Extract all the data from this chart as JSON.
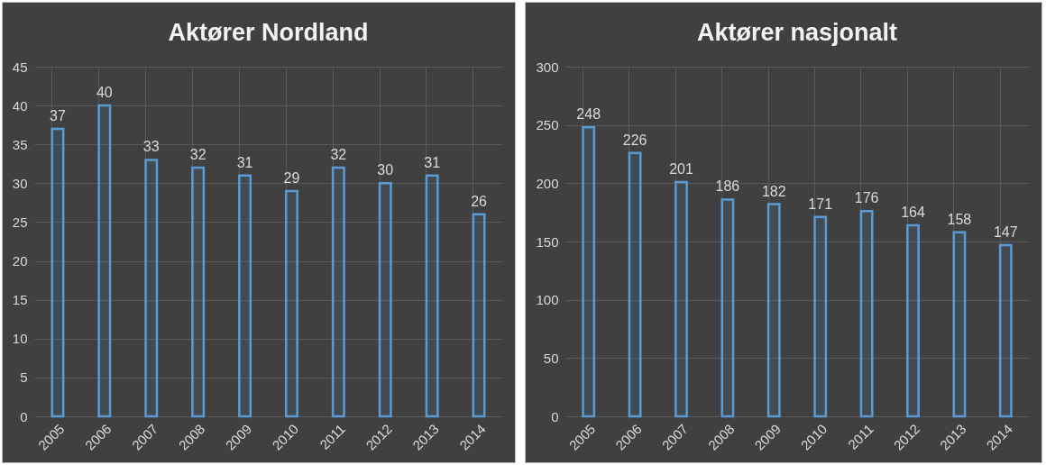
{
  "chart_data": [
    {
      "type": "bar",
      "title": "Aktører Nordland",
      "categories": [
        "2005",
        "2006",
        "2007",
        "2008",
        "2009",
        "2010",
        "2011",
        "2012",
        "2013",
        "2014"
      ],
      "values": [
        37,
        40,
        33,
        32,
        31,
        29,
        32,
        30,
        31,
        26
      ],
      "color": "#5b9bd5",
      "ylim": [
        0,
        45
      ],
      "yticks": [
        0,
        5,
        10,
        15,
        20,
        25,
        30,
        35,
        40,
        45
      ],
      "grid": true,
      "data_labels": true
    },
    {
      "type": "bar",
      "title": "Aktører nasjonalt",
      "categories": [
        "2005",
        "2006",
        "2007",
        "2008",
        "2009",
        "2010",
        "2011",
        "2012",
        "2013",
        "2014"
      ],
      "values": [
        248,
        226,
        201,
        186,
        182,
        171,
        176,
        164,
        158,
        147
      ],
      "color": "#5b9bd5",
      "ylim": [
        0,
        300
      ],
      "yticks": [
        0,
        50,
        100,
        150,
        200,
        250,
        300
      ],
      "grid": true,
      "data_labels": true
    }
  ]
}
